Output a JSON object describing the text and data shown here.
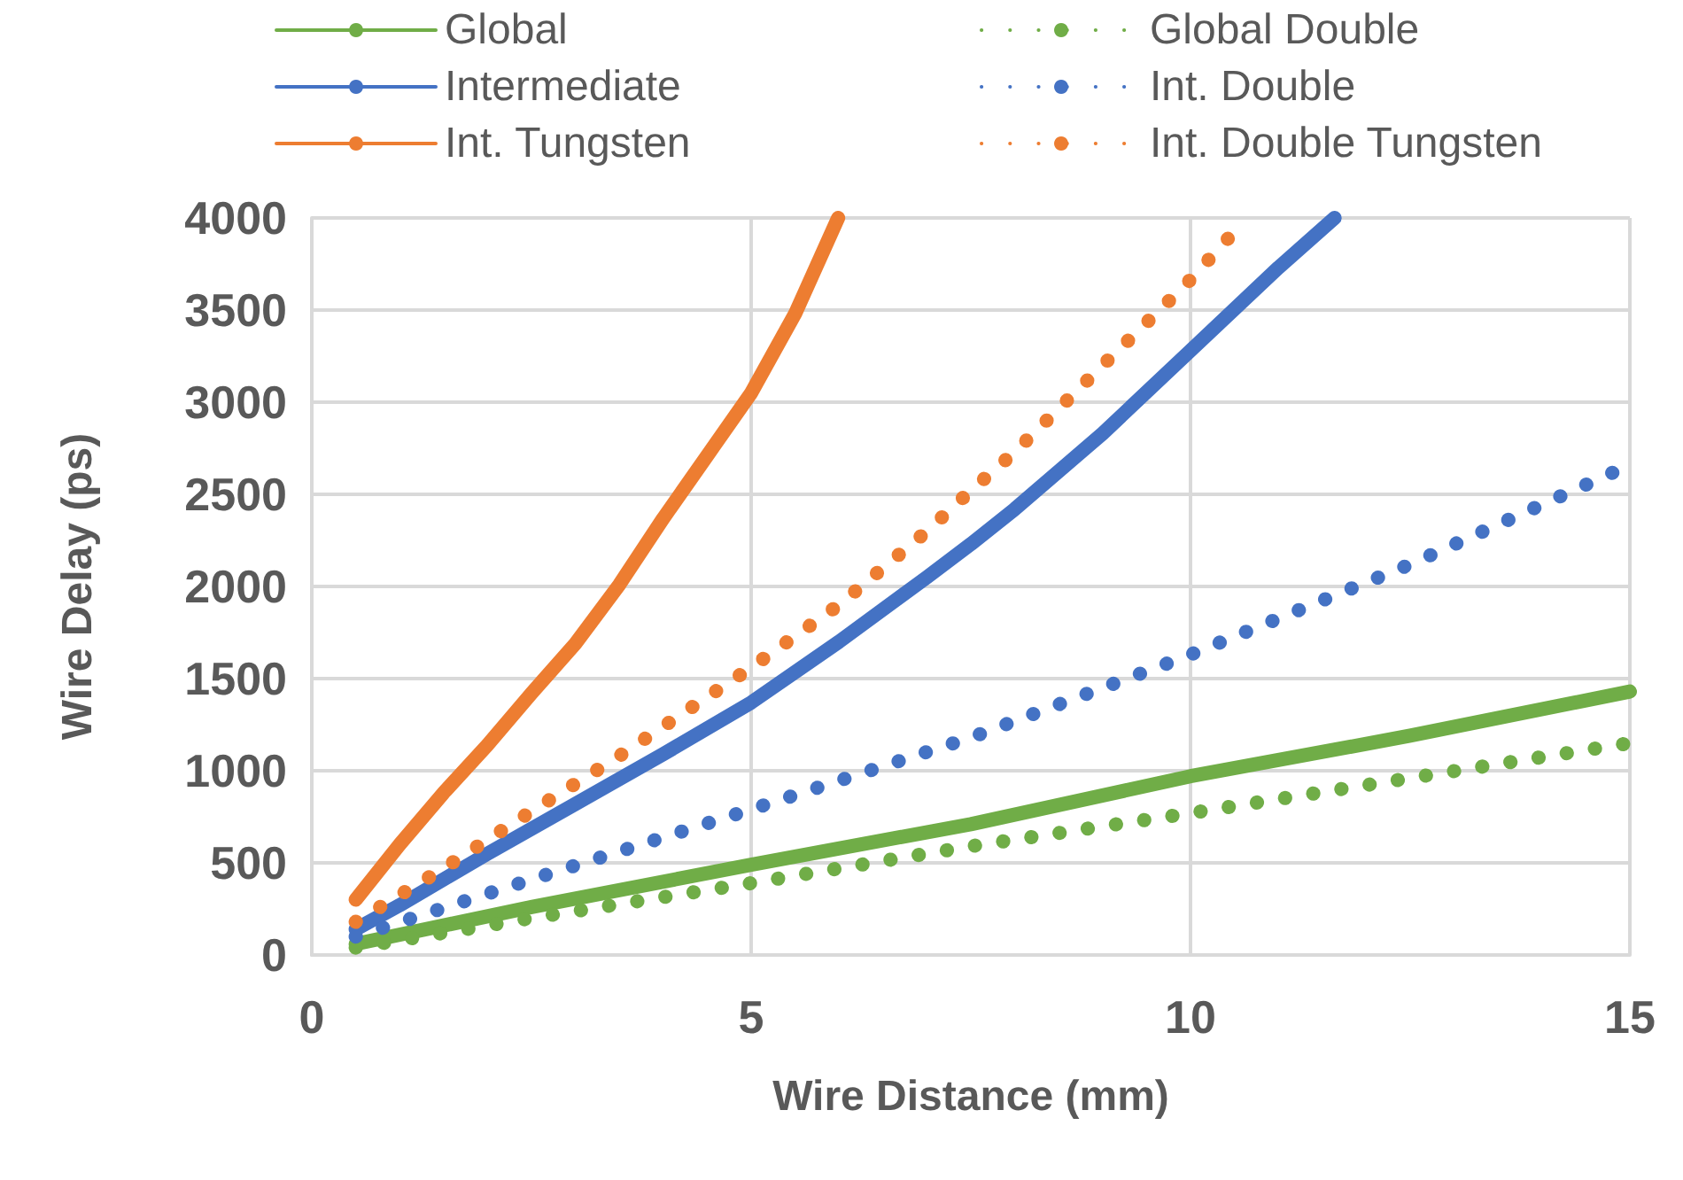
{
  "chart_data": {
    "type": "line",
    "xlabel": "Wire Distance (mm)",
    "ylabel": "Wire Delay (ps)",
    "xlim": [
      0,
      15
    ],
    "xticks": [
      0,
      5,
      10,
      15
    ],
    "ylim": [
      0,
      4000
    ],
    "yticks": [
      0,
      500,
      1000,
      1500,
      2000,
      2500,
      3000,
      3500,
      4000
    ],
    "grid": true,
    "legend": "top",
    "marker": "none",
    "series": [
      {
        "name": "Global",
        "color": "#70ad47",
        "line_style": "solid",
        "x": [
          0.5,
          2.5,
          5,
          7.5,
          10,
          12.5,
          15
        ],
        "values": [
          60,
          260,
          490,
          710,
          970,
          1190,
          1430
        ]
      },
      {
        "name": "Global Double",
        "color": "#70ad47",
        "line_style": "dotted",
        "x": [
          0.5,
          2.5,
          5,
          7.5,
          10,
          12.5,
          15
        ],
        "values": [
          40,
          200,
          390,
          590,
          770,
          960,
          1150
        ]
      },
      {
        "name": "Intermediate",
        "color": "#4472c4",
        "line_style": "solid",
        "x": [
          0.5,
          1,
          2,
          3,
          4,
          5,
          6,
          7,
          7.5,
          8,
          9,
          10,
          11,
          11.64
        ],
        "values": [
          140,
          270,
          550,
          820,
          1090,
          1370,
          1700,
          2050,
          2230,
          2420,
          2830,
          3280,
          3730,
          4000
        ]
      },
      {
        "name": "Int. Double",
        "color": "#4472c4",
        "line_style": "dotted",
        "x": [
          0.5,
          2.5,
          5,
          7.5,
          10,
          12.5,
          15
        ],
        "values": [
          100,
          410,
          790,
          1180,
          1630,
          2120,
          2660
        ]
      },
      {
        "name": "Int. Tungsten",
        "color": "#ed7d31",
        "line_style": "solid",
        "x": [
          0.5,
          1,
          1.5,
          2,
          2.5,
          3,
          3.5,
          4,
          4.5,
          5,
          5.5,
          5.99
        ],
        "values": [
          300,
          600,
          880,
          1140,
          1420,
          1690,
          2010,
          2370,
          2710,
          3050,
          3480,
          4000
        ]
      },
      {
        "name": "Int. Double Tungsten",
        "color": "#ed7d31",
        "line_style": "dotted",
        "x": [
          0.5,
          1.5,
          2.5,
          3.5,
          4.5,
          5,
          6,
          7,
          7.5,
          8,
          9,
          9.95,
          10.47
        ],
        "values": [
          180,
          470,
          780,
          1080,
          1400,
          1560,
          1900,
          2300,
          2520,
          2730,
          3200,
          3640,
          3910
        ]
      }
    ]
  }
}
